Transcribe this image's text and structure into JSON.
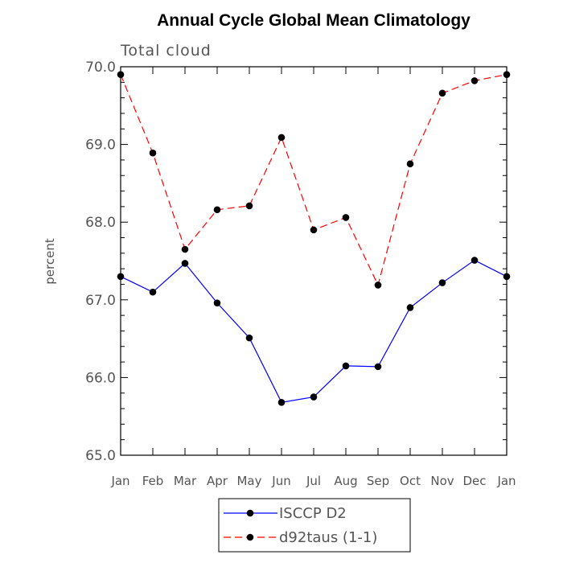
{
  "chart_data": {
    "type": "line",
    "title": "Annual Cycle Global Mean Climatology",
    "subtitle": "Total cloud",
    "xlabel": "",
    "ylabel": "percent",
    "categories": [
      "Jan",
      "Feb",
      "Mar",
      "Apr",
      "May",
      "Jun",
      "Jul",
      "Aug",
      "Sep",
      "Oct",
      "Nov",
      "Dec",
      "Jan"
    ],
    "ylim": [
      65.0,
      70.0
    ],
    "yticks": [
      "65.0",
      "66.0",
      "67.0",
      "68.0",
      "69.0",
      "70.0"
    ],
    "series": [
      {
        "name": "ISCCP D2",
        "color": "#0000ff",
        "dash": "solid",
        "values": [
          67.3,
          67.1,
          67.47,
          66.96,
          66.51,
          65.68,
          65.75,
          66.15,
          66.14,
          66.9,
          67.22,
          67.51,
          67.3
        ]
      },
      {
        "name": "d92taus (1-1)",
        "color": "#ff0000",
        "dash": "dashed",
        "values": [
          69.9,
          68.89,
          67.65,
          68.16,
          68.21,
          69.09,
          67.9,
          68.06,
          67.19,
          68.75,
          69.66,
          69.82,
          69.9
        ]
      }
    ]
  }
}
